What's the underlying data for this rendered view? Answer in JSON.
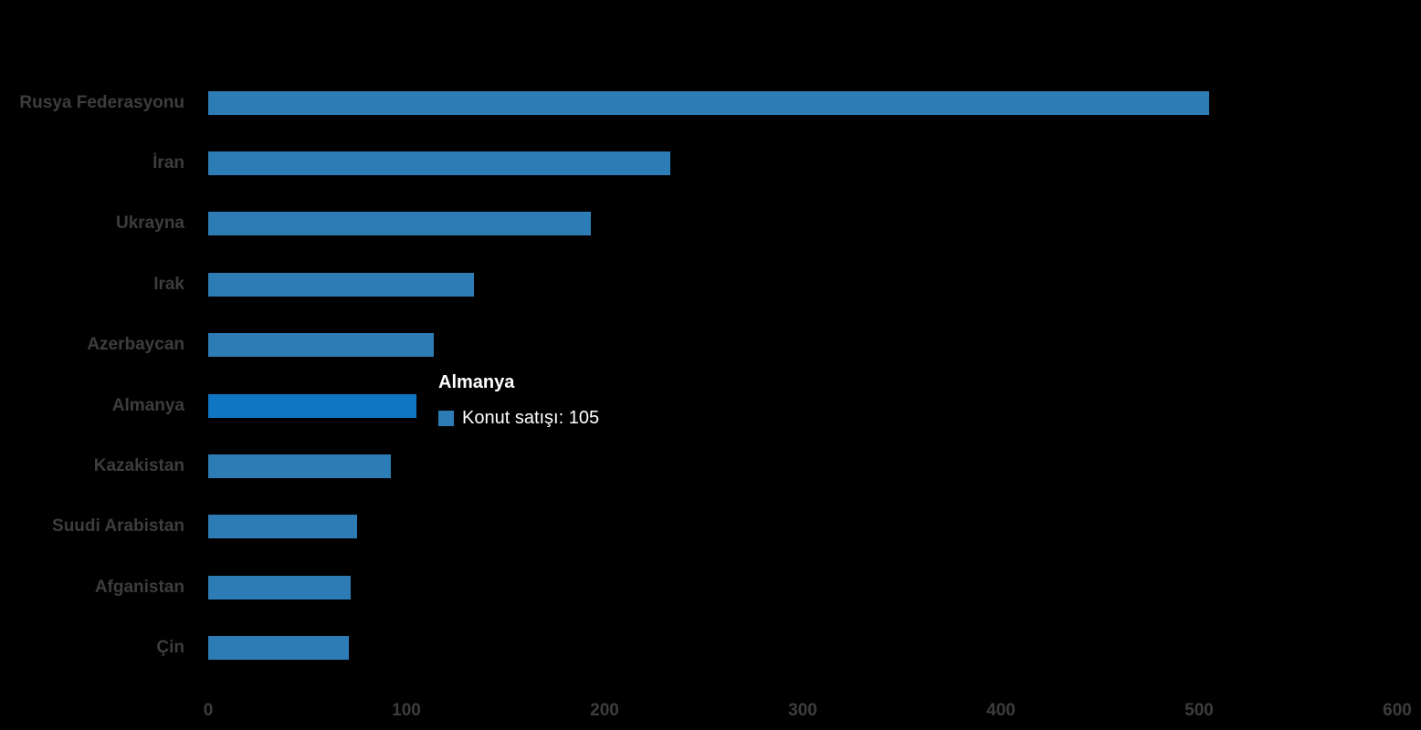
{
  "chart_data": {
    "type": "bar",
    "orientation": "horizontal",
    "title": "",
    "categories": [
      "Rusya Federasyonu",
      "İran",
      "Ukrayna",
      "Irak",
      "Azerbaycan",
      "Almanya",
      "Kazakistan",
      "Suudi Arabistan",
      "Afganistan",
      "Çin"
    ],
    "series": [
      {
        "name": "Konut satışı",
        "values": [
          505,
          233,
          193,
          134,
          114,
          105,
          92,
          75,
          72,
          71
        ]
      }
    ],
    "xlabel": "",
    "ylabel": "",
    "xlim": [
      0,
      600
    ],
    "x_ticks": [
      "0",
      "100",
      "200",
      "300",
      "400",
      "500",
      "600"
    ],
    "grid": false,
    "legend": "none",
    "highlighted_category": "Almanya"
  },
  "tooltip": {
    "title": "Almanya",
    "series_label": "Konut satışı",
    "value": "105",
    "text": "Konut satışı: 105"
  },
  "colors": {
    "bar": "#2e7cb5",
    "bar_highlight": "#1076c4",
    "category_label": "#3d3d3d",
    "axis_label": "#3d3d3d",
    "tooltip_text": "#ffffff",
    "background": "#000000"
  }
}
